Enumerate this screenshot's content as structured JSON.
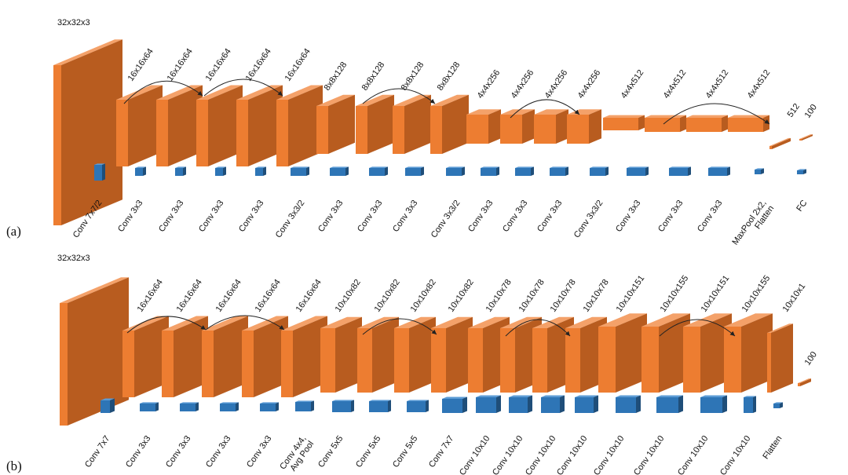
{
  "colors": {
    "block_front": "#ED7D31",
    "block_top": "#F4A169",
    "block_side": "#B85C1F",
    "kernel_front": "#2E75B6",
    "kernel_top": "#5B9BD5",
    "kernel_side": "#1F4E79",
    "arrow": "#222222",
    "text": "#111111"
  },
  "panels": [
    {
      "label": "(a)",
      "blocks": [
        {
          "dim": "32x32x3",
          "kernel_label": "Conv 7x7/2"
        },
        {
          "dim": "16x16x64",
          "kernel_label": "Conv 3x3"
        },
        {
          "dim": "16x16x64",
          "kernel_label": "Conv 3x3"
        },
        {
          "dim": "16x16x64",
          "kernel_label": "Conv 3x3"
        },
        {
          "dim": "16x16x64",
          "kernel_label": "Conv 3x3"
        },
        {
          "dim": "16x16x64",
          "kernel_label": "Conv 3x3/2"
        },
        {
          "dim": "8x8x128",
          "kernel_label": "Conv 3x3"
        },
        {
          "dim": "8x8x128",
          "kernel_label": "Conv 3x3"
        },
        {
          "dim": "8x8x128",
          "kernel_label": "Conv 3x3"
        },
        {
          "dim": "8x8x128",
          "kernel_label": "Conv 3x3/2"
        },
        {
          "dim": "4x4x256",
          "kernel_label": "Conv 3x3"
        },
        {
          "dim": "4x4x256",
          "kernel_label": "Conv 3x3"
        },
        {
          "dim": "4x4x256",
          "kernel_label": "Conv 3x3"
        },
        {
          "dim": "4x4x256",
          "kernel_label": "Conv 3x3/2"
        },
        {
          "dim": "4x4x512",
          "kernel_label": "Conv 3x3"
        },
        {
          "dim": "4x4x512",
          "kernel_label": "Conv 3x3"
        },
        {
          "dim": "4x4x512",
          "kernel_label": "Conv 3x3"
        },
        {
          "dim": "4x4x512",
          "kernel_label": "MaxPool 2x2,\nFlatten"
        },
        {
          "dim": "512",
          "kernel_label": "FC"
        },
        {
          "dim": "100",
          "kernel_label": ""
        }
      ]
    },
    {
      "label": "(b)",
      "blocks": [
        {
          "dim": "32x32x3",
          "kernel_label": "Conv 7x7"
        },
        {
          "dim": "16x16x64",
          "kernel_label": "Conv 3x3"
        },
        {
          "dim": "16x16x64",
          "kernel_label": "Conv 3x3"
        },
        {
          "dim": "16x16x64",
          "kernel_label": "Conv 3x3"
        },
        {
          "dim": "16x16x64",
          "kernel_label": "Conv 3x3"
        },
        {
          "dim": "16x16x64",
          "kernel_label": "Conv 4x4,\nAvg Pool"
        },
        {
          "dim": "10x10x82",
          "kernel_label": "Conv 5x5"
        },
        {
          "dim": "10x10x82",
          "kernel_label": "Conv 5x5"
        },
        {
          "dim": "10x10x82",
          "kernel_label": "Conv 5x5"
        },
        {
          "dim": "10x10x82",
          "kernel_label": "Conv 7x7"
        },
        {
          "dim": "10x10x78",
          "kernel_label": "Conv 10x10"
        },
        {
          "dim": "10x10x78",
          "kernel_label": "Conv 10x10"
        },
        {
          "dim": "10x10x78",
          "kernel_label": "Conv 10x10"
        },
        {
          "dim": "10x10x78",
          "kernel_label": "Conv 10x10"
        },
        {
          "dim": "10x10x151",
          "kernel_label": "Conv 10x10"
        },
        {
          "dim": "10x10x155",
          "kernel_label": "Conv 10x10"
        },
        {
          "dim": "10x10x151",
          "kernel_label": "Conv 10x10"
        },
        {
          "dim": "10x10x155",
          "kernel_label": "Conv 10x10"
        },
        {
          "dim": "10x10x1",
          "kernel_label": "Flatten"
        },
        {
          "dim": "100",
          "kernel_label": ""
        }
      ]
    }
  ]
}
